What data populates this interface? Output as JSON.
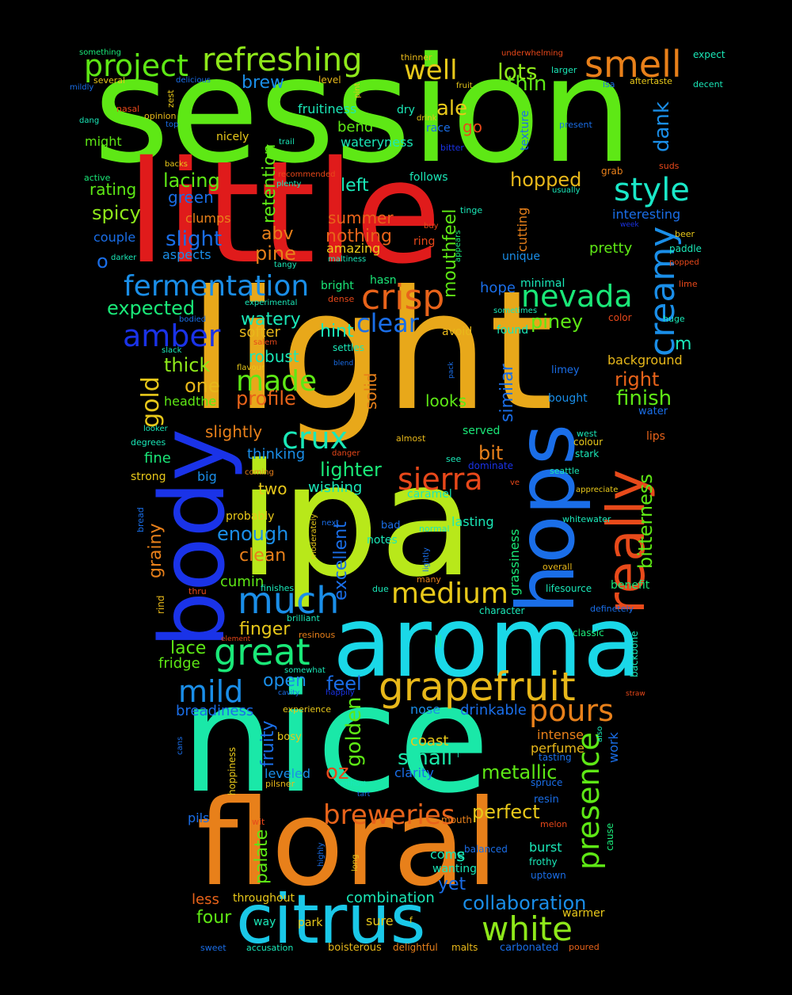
{
  "words": [
    {
      "text": "session",
      "color": "#5ee815"
    },
    {
      "text": "little",
      "color": "#e01b1b"
    },
    {
      "text": "light",
      "color": "#e8a81a"
    },
    {
      "text": "ipa",
      "color": "#b8e81a"
    },
    {
      "text": "aroma",
      "color": "#1ad8e8"
    },
    {
      "text": "nice",
      "color": "#1ae8a8"
    },
    {
      "text": "floral",
      "color": "#e8801a"
    },
    {
      "text": "body",
      "color": "#1a33e8"
    },
    {
      "text": "hops",
      "color": "#1a6ee8"
    },
    {
      "text": "really",
      "color": "#e84a1a"
    },
    {
      "text": "citrus",
      "color": "#1ac8e8"
    },
    {
      "text": "grapefruit",
      "color": "#e8b81a"
    },
    {
      "text": "refreshing",
      "color": "#8ee81a"
    },
    {
      "text": "smell",
      "color": "#e8801a"
    },
    {
      "text": "project",
      "color": "#5ee815"
    },
    {
      "text": "creamy",
      "color": "#1a8ee8"
    },
    {
      "text": "crisp",
      "color": "#e8631a"
    },
    {
      "text": "fermentation",
      "color": "#1a8ee8"
    },
    {
      "text": "nevada",
      "color": "#1ae878"
    },
    {
      "text": "style",
      "color": "#1ae8c8"
    },
    {
      "text": "great",
      "color": "#1ae878"
    },
    {
      "text": "much",
      "color": "#1a8ee8"
    },
    {
      "text": "medium",
      "color": "#e8c81a"
    },
    {
      "text": "amber",
      "color": "#1a33e8"
    },
    {
      "text": "made",
      "color": "#5ee815"
    },
    {
      "text": "crux",
      "color": "#1ae8b8"
    },
    {
      "text": "sierra",
      "color": "#e8481a"
    },
    {
      "text": "breweries",
      "color": "#e8631a"
    },
    {
      "text": "white",
      "color": "#8ee81a"
    },
    {
      "text": "collaboration",
      "color": "#1a8ee8"
    },
    {
      "text": "presence",
      "color": "#5ee815"
    },
    {
      "text": "mild",
      "color": "#1a8ee8"
    },
    {
      "text": "pours",
      "color": "#e8801a"
    },
    {
      "text": "well",
      "color": "#e8c81a"
    },
    {
      "text": "lots",
      "color": "#8ee81a"
    },
    {
      "text": "thin",
      "color": "#5ee815"
    },
    {
      "text": "clear",
      "color": "#1a6ee8"
    },
    {
      "text": "hopped",
      "color": "#e8b81a"
    },
    {
      "text": "lacing",
      "color": "#5ee815"
    },
    {
      "text": "slight",
      "color": "#1a6ee8"
    },
    {
      "text": "spicy",
      "color": "#8ee81a"
    },
    {
      "text": "rating",
      "color": "#5ee815"
    },
    {
      "text": "expected",
      "color": "#1ae878"
    },
    {
      "text": "gold",
      "color": "#e8c81a"
    },
    {
      "text": "thick",
      "color": "#8ee81a"
    },
    {
      "text": "one",
      "color": "#e8b81a"
    },
    {
      "text": "profile",
      "color": "#e8631a"
    },
    {
      "text": "bitterness",
      "color": "#5ee815"
    },
    {
      "text": "finish",
      "color": "#5ee815"
    },
    {
      "text": "right",
      "color": "#e8631a"
    },
    {
      "text": "piney",
      "color": "#5ee815"
    },
    {
      "text": "perfect",
      "color": "#e8c81a"
    },
    {
      "text": "metallic",
      "color": "#5ee815"
    },
    {
      "text": "small",
      "color": "#1ae8a8"
    },
    {
      "text": "golden",
      "color": "#5ee815"
    },
    {
      "text": "fruity",
      "color": "#1a6ee8"
    },
    {
      "text": "oz",
      "color": "#e8481a"
    },
    {
      "text": "palate",
      "color": "#5ee815"
    },
    {
      "text": "four",
      "color": "#5ee815"
    },
    {
      "text": "less",
      "color": "#e8631a"
    },
    {
      "text": "yet",
      "color": "#1a6ee8"
    },
    {
      "text": "combination",
      "color": "#1ae8b8"
    },
    {
      "text": "ale",
      "color": "#e8c81a"
    },
    {
      "text": "brew",
      "color": "#1a8ee8"
    },
    {
      "text": "retention",
      "color": "#5ee815"
    },
    {
      "text": "dank",
      "color": "#1a8ee8"
    },
    {
      "text": "abv",
      "color": "#e8801a"
    },
    {
      "text": "pine",
      "color": "#e8801a"
    },
    {
      "text": "nothing",
      "color": "#e8631a"
    },
    {
      "text": "summer",
      "color": "#e8631a"
    },
    {
      "text": "left",
      "color": "#1ae8b8"
    },
    {
      "text": "mouthfeel",
      "color": "#5ee815"
    },
    {
      "text": "green",
      "color": "#1a6ee8"
    },
    {
      "text": "watery",
      "color": "#1ae8b8"
    },
    {
      "text": "softer",
      "color": "#e8b81a"
    },
    {
      "text": "robust",
      "color": "#1ae8b8"
    },
    {
      "text": "hint",
      "color": "#1ae8b8"
    },
    {
      "text": "solid",
      "color": "#e8801a"
    },
    {
      "text": "looks",
      "color": "#5ee815"
    },
    {
      "text": "similar",
      "color": "#1a6ee8"
    },
    {
      "text": "bit",
      "color": "#e8801a"
    },
    {
      "text": "lighter",
      "color": "#1ae878"
    },
    {
      "text": "slightly",
      "color": "#e8801a"
    },
    {
      "text": "thinking",
      "color": "#1a8ee8"
    },
    {
      "text": "fine",
      "color": "#1ae878"
    },
    {
      "text": "two",
      "color": "#e8c81a"
    },
    {
      "text": "wishing",
      "color": "#1ae8b8"
    },
    {
      "text": "grainy",
      "color": "#e8801a"
    },
    {
      "text": "enough",
      "color": "#1a8ee8"
    },
    {
      "text": "clean",
      "color": "#e8801a"
    },
    {
      "text": "excellent",
      "color": "#1a6ee8"
    },
    {
      "text": "cumin",
      "color": "#5ee815"
    },
    {
      "text": "finger",
      "color": "#e8c81a"
    },
    {
      "text": "lace",
      "color": "#5ee815"
    },
    {
      "text": "fridge",
      "color": "#5ee815"
    },
    {
      "text": "open",
      "color": "#1a8ee8"
    },
    {
      "text": "feel",
      "color": "#1a6ee8"
    },
    {
      "text": "drinkable",
      "color": "#1a6ee8"
    },
    {
      "text": "grassiness",
      "color": "#1ae878"
    },
    {
      "text": "lasting",
      "color": "#1ae8b8"
    },
    {
      "text": "notes",
      "color": "#1ae8b8"
    },
    {
      "text": "m",
      "color": "#1ae8b8"
    },
    {
      "text": "o",
      "color": "#1a6ee8"
    },
    {
      "text": "ll",
      "color": "#1ae8b8"
    },
    {
      "text": "s",
      "color": "#1ae8b8"
    },
    {
      "text": "amazing",
      "color": "#e8c81a"
    },
    {
      "text": "bend",
      "color": "#5ee815"
    },
    {
      "text": "go",
      "color": "#e8481a"
    },
    {
      "text": "cutting",
      "color": "#e8801a"
    },
    {
      "text": "pretty",
      "color": "#5ee815"
    },
    {
      "text": "hope",
      "color": "#1a6ee8"
    },
    {
      "text": "headthe",
      "color": "#5ee815"
    },
    {
      "text": "caramel",
      "color": "#1ae8b8"
    },
    {
      "text": "breadiness",
      "color": "#1a6ee8"
    },
    {
      "text": "nose",
      "color": "#1a8ee8"
    },
    {
      "text": "coast",
      "color": "#e8c81a"
    },
    {
      "text": "clarity",
      "color": "#1a6ee8"
    },
    {
      "text": "intense",
      "color": "#e8801a"
    },
    {
      "text": "perfume",
      "color": "#e8b81a"
    },
    {
      "text": "work",
      "color": "#1a6ee8"
    },
    {
      "text": "burst",
      "color": "#1ae8b8"
    },
    {
      "text": "wanting",
      "color": "#1ae8b8"
    },
    {
      "text": "come",
      "color": "#1ae8b8"
    },
    {
      "text": "sure",
      "color": "#e8c81a"
    },
    {
      "text": "warmer",
      "color": "#e8c81a"
    },
    {
      "text": "throughout",
      "color": "#e8c81a"
    },
    {
      "text": "way",
      "color": "#1ae8b8"
    },
    {
      "text": "park",
      "color": "#e8c81a"
    },
    {
      "text": "pils",
      "color": "#1a6ee8"
    },
    {
      "text": "leveled",
      "color": "#1a8ee8"
    },
    {
      "text": "fruitiness",
      "color": "#1ae8b8"
    },
    {
      "text": "wateryness",
      "color": "#1ae8b8"
    },
    {
      "text": "nicely",
      "color": "#e8c81a"
    },
    {
      "text": "dry",
      "color": "#1ae8b8"
    },
    {
      "text": "race",
      "color": "#1a6ee8"
    },
    {
      "text": "might",
      "color": "#5ee815"
    },
    {
      "text": "texture",
      "color": "#1a6ee8"
    },
    {
      "text": "follows",
      "color": "#1ae8b8"
    },
    {
      "text": "clumps",
      "color": "#e8801a"
    },
    {
      "text": "aspects",
      "color": "#1a8ee8"
    },
    {
      "text": "couple",
      "color": "#1a6ee8"
    },
    {
      "text": "interesting",
      "color": "#1a6ee8"
    },
    {
      "text": "paddle",
      "color": "#1ae8b8"
    },
    {
      "text": "unique",
      "color": "#1a8ee8"
    },
    {
      "text": "bright",
      "color": "#1ae878"
    },
    {
      "text": "hasn",
      "color": "#1ae878"
    },
    {
      "text": "minimal",
      "color": "#1ae8b8"
    },
    {
      "text": "background",
      "color": "#e8b81a"
    },
    {
      "text": "found",
      "color": "#1ae8b8"
    },
    {
      "text": "bought",
      "color": "#1a8ee8"
    },
    {
      "text": "avoid",
      "color": "#e8b81a"
    },
    {
      "text": "served",
      "color": "#1ae878"
    },
    {
      "text": "settles",
      "color": "#1ae8b8"
    },
    {
      "text": "big",
      "color": "#1a8ee8"
    },
    {
      "text": "strong",
      "color": "#e8c81a"
    },
    {
      "text": "probably",
      "color": "#e8c81a"
    },
    {
      "text": "beer",
      "color": "#e8c81a"
    },
    {
      "text": "lime",
      "color": "#e8481a"
    },
    {
      "text": "huge",
      "color": "#1ae8b8"
    },
    {
      "text": "color",
      "color": "#e8481a"
    },
    {
      "text": "water",
      "color": "#1a6ee8"
    },
    {
      "text": "lips",
      "color": "#e8631a"
    },
    {
      "text": "limey",
      "color": "#1a6ee8"
    },
    {
      "text": "colour",
      "color": "#e8c81a"
    },
    {
      "text": "stark",
      "color": "#1ae8b8"
    },
    {
      "text": "west",
      "color": "#1ae8b8"
    },
    {
      "text": "seattle",
      "color": "#1ae8b8"
    },
    {
      "text": "appreciate",
      "color": "#e8c81a"
    },
    {
      "text": "whitewater",
      "color": "#1ae8b8"
    },
    {
      "text": "overall",
      "color": "#e8b81a"
    },
    {
      "text": "lifesource",
      "color": "#1ae8b8"
    },
    {
      "text": "benefit",
      "color": "#1ae878"
    },
    {
      "text": "definetely",
      "color": "#1a6ee8"
    },
    {
      "text": "classic",
      "color": "#1ae878"
    },
    {
      "text": "character",
      "color": "#1ae8b8"
    },
    {
      "text": "backbone",
      "color": "#1ae8b8"
    },
    {
      "text": "cause",
      "color": "#1ae878"
    },
    {
      "text": "melon",
      "color": "#e8481a"
    },
    {
      "text": "balanced",
      "color": "#1a6ee8"
    },
    {
      "text": "frothy",
      "color": "#1ae8b8"
    },
    {
      "text": "uptown",
      "color": "#1a6ee8"
    },
    {
      "text": "spruce",
      "color": "#1a6ee8"
    },
    {
      "text": "tasting",
      "color": "#1a6ee8"
    },
    {
      "text": "resin",
      "color": "#1a6ee8"
    },
    {
      "text": "mouth",
      "color": "#e8801a"
    },
    {
      "text": "sweet",
      "color": "#1a6ee8"
    },
    {
      "text": "accusation",
      "color": "#1ae8b8"
    },
    {
      "text": "boisterous",
      "color": "#e8b81a"
    },
    {
      "text": "delightful",
      "color": "#e8801a"
    },
    {
      "text": "malts",
      "color": "#e8b81a"
    },
    {
      "text": "carbonated",
      "color": "#1a6ee8"
    },
    {
      "text": "poured",
      "color": "#e8631a"
    },
    {
      "text": "something",
      "color": "#1ae878"
    },
    {
      "text": "several",
      "color": "#e8c81a"
    },
    {
      "text": "mildly",
      "color": "#1a6ee8"
    },
    {
      "text": "delicious",
      "color": "#1a6ee8"
    },
    {
      "text": "zest",
      "color": "#e8c81a"
    },
    {
      "text": "nasal",
      "color": "#e8481a"
    },
    {
      "text": "opinion",
      "color": "#e8b81a"
    },
    {
      "text": "dang",
      "color": "#1ae8b8"
    },
    {
      "text": "top",
      "color": "#1a6ee8"
    },
    {
      "text": "backs",
      "color": "#e8c81a"
    },
    {
      "text": "active",
      "color": "#1ae878"
    },
    {
      "text": "thinner",
      "color": "#e8b81a"
    },
    {
      "text": "pint",
      "color": "#e8c81a"
    },
    {
      "text": "level",
      "color": "#e8b81a"
    },
    {
      "text": "underwhelming",
      "color": "#e8481a"
    },
    {
      "text": "larger",
      "color": "#1ae8b8"
    },
    {
      "text": "fruit",
      "color": "#e8c81a"
    },
    {
      "text": "expect",
      "color": "#1ae8b8"
    },
    {
      "text": "isa",
      "color": "#1a6ee8"
    },
    {
      "text": "aftertaste",
      "color": "#e8c81a"
    },
    {
      "text": "decent",
      "color": "#1ae8b8"
    },
    {
      "text": "drink",
      "color": "#e8c81a"
    },
    {
      "text": "present",
      "color": "#1a6ee8"
    },
    {
      "text": "bitter",
      "color": "#1a33e8"
    },
    {
      "text": "trail",
      "color": "#1ae8b8"
    },
    {
      "text": "suds",
      "color": "#e8481a"
    },
    {
      "text": "grab",
      "color": "#e8801a"
    },
    {
      "text": "usually",
      "color": "#1ae8b8"
    },
    {
      "text": "recommended",
      "color": "#e8481a"
    },
    {
      "text": "plenty",
      "color": "#1ae8b8"
    },
    {
      "text": "tinge",
      "color": "#1ae8b8"
    },
    {
      "text": "week",
      "color": "#1a33e8"
    },
    {
      "text": "buy",
      "color": "#e8481a"
    },
    {
      "text": "appears",
      "color": "#1ae878"
    },
    {
      "text": "ring",
      "color": "#e8481a"
    },
    {
      "text": "maltiness",
      "color": "#1ae8b8"
    },
    {
      "text": "tangy",
      "color": "#1ae8b8"
    },
    {
      "text": "darker",
      "color": "#1ae8b8"
    },
    {
      "text": "popped",
      "color": "#e8481a"
    },
    {
      "text": "dense",
      "color": "#e8481a"
    },
    {
      "text": "experimental",
      "color": "#1ae8b8"
    },
    {
      "text": "sometimes",
      "color": "#1ae8b8"
    },
    {
      "text": "bodied",
      "color": "#1a6ee8"
    },
    {
      "text": "salem",
      "color": "#e8481a"
    },
    {
      "text": "slack",
      "color": "#1ae8b8"
    },
    {
      "text": "blend",
      "color": "#1a6ee8"
    },
    {
      "text": "flavour",
      "color": "#e8c81a"
    },
    {
      "text": "pack",
      "color": "#1a6ee8"
    },
    {
      "text": "looker",
      "color": "#1ae8b8"
    },
    {
      "text": "degrees",
      "color": "#1ae8b8"
    },
    {
      "text": "almost",
      "color": "#e8b81a"
    },
    {
      "text": "danger",
      "color": "#e8481a"
    },
    {
      "text": "see",
      "color": "#1ae8b8"
    },
    {
      "text": "dominate",
      "color": "#1a33e8"
    },
    {
      "text": "coming",
      "color": "#e8801a"
    },
    {
      "text": "ve",
      "color": "#e8481a"
    },
    {
      "text": "bread",
      "color": "#1a6ee8"
    },
    {
      "text": "moderately",
      "color": "#e8c81a"
    },
    {
      "text": "next",
      "color": "#1a6ee8"
    },
    {
      "text": "bad",
      "color": "#1a6ee8"
    },
    {
      "text": "normal",
      "color": "#1ae8b8"
    },
    {
      "text": "lightly",
      "color": "#1a6ee8"
    },
    {
      "text": "many",
      "color": "#e8801a"
    },
    {
      "text": "rind",
      "color": "#e8b81a"
    },
    {
      "text": "thru",
      "color": "#e8481a"
    },
    {
      "text": "finishes",
      "color": "#1ae8b8"
    },
    {
      "text": "due",
      "color": "#1ae8b8"
    },
    {
      "text": "brilliant",
      "color": "#1ae8b8"
    },
    {
      "text": "element",
      "color": "#e8481a"
    },
    {
      "text": "resinous",
      "color": "#e8801a"
    },
    {
      "text": "somewhat",
      "color": "#1ae8b8"
    },
    {
      "text": "cavity",
      "color": "#1a6ee8"
    },
    {
      "text": "happily",
      "color": "#1a33e8"
    },
    {
      "text": "experience",
      "color": "#e8c81a"
    },
    {
      "text": "bosy",
      "color": "#e8c81a"
    },
    {
      "text": "cans",
      "color": "#1a6ee8"
    },
    {
      "text": "hoppiness",
      "color": "#e8c81a"
    },
    {
      "text": "pilsner",
      "color": "#e8b81a"
    },
    {
      "text": "without",
      "color": "#1ae8b8"
    },
    {
      "text": "tart",
      "color": "#1a6ee8"
    },
    {
      "text": "wit",
      "color": "#e8481a"
    },
    {
      "text": "highly",
      "color": "#1a6ee8"
    },
    {
      "text": "long",
      "color": "#e8c81a"
    },
    {
      "text": "straw",
      "color": "#e8481a"
    },
    {
      "text": "also",
      "color": "#1ae8b8"
    },
    {
      "text": "l",
      "color": "#1ae8b8"
    },
    {
      "text": "f",
      "color": "#e8c81a"
    }
  ]
}
